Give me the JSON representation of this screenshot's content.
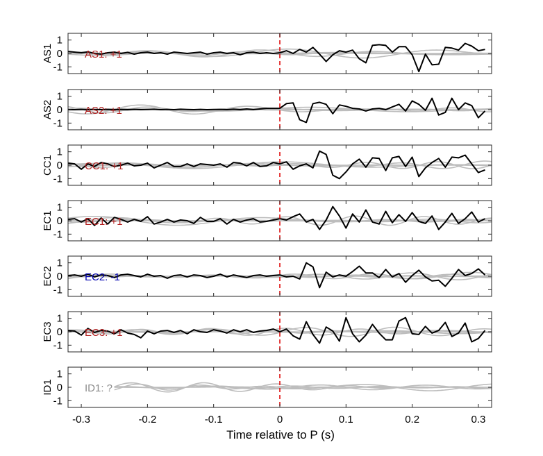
{
  "chart_data": {
    "type": "line",
    "xlabel": "Time relative to P (s)",
    "xlim": [
      -0.32,
      0.32
    ],
    "ylim": [
      -1.5,
      1.5
    ],
    "xticks": [
      "-0.3",
      "-0.2",
      "-0.1",
      "0",
      "0.1",
      "0.2",
      "0.3"
    ],
    "xtick_values": [
      -0.3,
      -0.2,
      -0.1,
      0,
      0.1,
      0.2,
      0.3
    ],
    "yticks": [
      "1",
      "0",
      "-1"
    ],
    "ytick_values": [
      1,
      0,
      -1
    ],
    "marker_x": 0,
    "colors": {
      "trace": "#000000",
      "synthetic": "#bdbdbd",
      "marker": "#e01010",
      "positive": "#b22222",
      "negative": "#0000b0",
      "unknown": "#8c8c8c"
    },
    "panels": [
      {
        "ylabel": "AS1",
        "label": "AS1: +1",
        "label_color": "#b22222",
        "x": [
          -0.32,
          -0.31,
          -0.3,
          -0.29,
          -0.28,
          -0.27,
          -0.26,
          -0.25,
          -0.24,
          -0.23,
          -0.22,
          -0.21,
          -0.2,
          -0.19,
          -0.18,
          -0.17,
          -0.16,
          -0.15,
          -0.14,
          -0.13,
          -0.12,
          -0.11,
          -0.1,
          -0.09,
          -0.08,
          -0.07,
          -0.06,
          -0.05,
          -0.04,
          -0.03,
          -0.02,
          -0.01,
          0.0,
          0.01,
          0.02,
          0.03,
          0.04,
          0.05,
          0.06,
          0.07,
          0.08,
          0.09,
          0.1,
          0.11,
          0.12,
          0.13,
          0.14,
          0.15,
          0.16,
          0.17,
          0.18,
          0.19,
          0.2,
          0.21,
          0.22,
          0.23,
          0.24,
          0.25,
          0.26,
          0.27,
          0.28,
          0.29,
          0.3,
          0.31
        ],
        "y": [
          0.15,
          0.1,
          0.05,
          0.12,
          0.0,
          -0.05,
          0.05,
          0.1,
          0.0,
          0.08,
          -0.05,
          0.05,
          0.1,
          0.0,
          0.05,
          -0.05,
          0.1,
          0.05,
          0.0,
          0.05,
          0.1,
          -0.05,
          0.05,
          0.1,
          0.0,
          0.05,
          -0.1,
          0.05,
          0.1,
          0.0,
          0.05,
          0.0,
          0.05,
          0.2,
          0.0,
          0.3,
          0.1,
          0.45,
          -0.05,
          -0.6,
          -0.1,
          0.2,
          0.1,
          0.25,
          -0.4,
          -0.7,
          0.6,
          0.65,
          0.6,
          0.1,
          0.5,
          0.5,
          -0.1,
          -1.35,
          -0.05,
          -0.85,
          -0.8,
          0.45,
          0.4,
          0.25,
          0.75,
          0.55,
          0.2,
          0.3
        ]
      },
      {
        "ylabel": "AS2",
        "label": "AS2: +1",
        "label_color": "#b22222",
        "x": [
          -0.32,
          -0.31,
          -0.3,
          -0.29,
          -0.28,
          -0.27,
          -0.26,
          -0.25,
          -0.24,
          -0.23,
          -0.22,
          -0.21,
          -0.2,
          -0.19,
          -0.18,
          -0.17,
          -0.16,
          -0.15,
          -0.14,
          -0.13,
          -0.12,
          -0.11,
          -0.1,
          -0.09,
          -0.08,
          -0.07,
          -0.06,
          -0.05,
          -0.04,
          -0.03,
          -0.02,
          -0.01,
          0.0,
          0.01,
          0.02,
          0.03,
          0.04,
          0.05,
          0.06,
          0.07,
          0.08,
          0.09,
          0.1,
          0.11,
          0.12,
          0.13,
          0.14,
          0.15,
          0.16,
          0.17,
          0.18,
          0.19,
          0.2,
          0.21,
          0.22,
          0.23,
          0.24,
          0.25,
          0.26,
          0.27,
          0.28,
          0.29,
          0.3,
          0.31
        ],
        "y": [
          0.0,
          0.0,
          0.02,
          0.0,
          0.01,
          0.0,
          0.02,
          0.0,
          0.01,
          0.0,
          0.02,
          0.0,
          0.01,
          0.03,
          0.0,
          0.02,
          0.0,
          0.03,
          0.01,
          0.0,
          0.02,
          0.0,
          0.01,
          0.02,
          0.0,
          0.03,
          0.0,
          0.05,
          0.0,
          0.05,
          0.1,
          0.1,
          0.1,
          0.45,
          0.5,
          -0.75,
          -0.95,
          0.45,
          0.55,
          0.4,
          -0.3,
          0.35,
          0.25,
          0.1,
          0.05,
          -0.1,
          0.05,
          0.1,
          0.0,
          0.2,
          0.4,
          -0.1,
          0.65,
          0.4,
          -0.05,
          0.85,
          -0.4,
          -0.2,
          0.85,
          0.0,
          0.5,
          0.3,
          -0.6,
          -0.1
        ]
      },
      {
        "ylabel": "CC1",
        "label": "CC1: +1",
        "label_color": "#b22222",
        "x": [
          -0.32,
          -0.31,
          -0.3,
          -0.29,
          -0.28,
          -0.27,
          -0.26,
          -0.25,
          -0.24,
          -0.23,
          -0.22,
          -0.21,
          -0.2,
          -0.19,
          -0.18,
          -0.17,
          -0.16,
          -0.15,
          -0.14,
          -0.13,
          -0.12,
          -0.11,
          -0.1,
          -0.09,
          -0.08,
          -0.07,
          -0.06,
          -0.05,
          -0.04,
          -0.03,
          -0.02,
          -0.01,
          0.0,
          0.01,
          0.02,
          0.03,
          0.04,
          0.05,
          0.06,
          0.07,
          0.08,
          0.09,
          0.1,
          0.11,
          0.12,
          0.13,
          0.14,
          0.15,
          0.16,
          0.17,
          0.18,
          0.19,
          0.2,
          0.21,
          0.22,
          0.23,
          0.24,
          0.25,
          0.26,
          0.27,
          0.28,
          0.29,
          0.3,
          0.31
        ],
        "y": [
          0.15,
          0.1,
          -0.3,
          0.1,
          -0.1,
          0.2,
          0.1,
          -0.1,
          0.0,
          0.15,
          -0.05,
          0.0,
          0.15,
          -0.2,
          0.0,
          0.2,
          -0.1,
          -0.1,
          0.1,
          -0.1,
          0.1,
          0.05,
          0.0,
          0.1,
          -0.15,
          0.2,
          0.15,
          -0.05,
          0.2,
          -0.1,
          -0.05,
          0.2,
          0.1,
          0.25,
          -0.3,
          -0.05,
          0.1,
          -0.2,
          1.05,
          0.8,
          -0.75,
          -1.0,
          -0.5,
          0.1,
          0.45,
          -0.15,
          0.55,
          0.5,
          -0.4,
          0.55,
          0.65,
          -0.1,
          0.6,
          -0.85,
          -0.2,
          0.2,
          0.5,
          -0.15,
          0.6,
          0.55,
          0.75,
          0.1,
          -0.55,
          -0.35
        ]
      },
      {
        "ylabel": "EC1",
        "label": "EC1: +1",
        "label_color": "#b22222",
        "x": [
          -0.32,
          -0.31,
          -0.3,
          -0.29,
          -0.28,
          -0.27,
          -0.26,
          -0.25,
          -0.24,
          -0.23,
          -0.22,
          -0.21,
          -0.2,
          -0.19,
          -0.18,
          -0.17,
          -0.16,
          -0.15,
          -0.14,
          -0.13,
          -0.12,
          -0.11,
          -0.1,
          -0.09,
          -0.08,
          -0.07,
          -0.06,
          -0.05,
          -0.04,
          -0.03,
          -0.02,
          -0.01,
          0.0,
          0.01,
          0.02,
          0.03,
          0.04,
          0.05,
          0.06,
          0.07,
          0.08,
          0.09,
          0.1,
          0.11,
          0.12,
          0.13,
          0.14,
          0.15,
          0.16,
          0.17,
          0.18,
          0.19,
          0.2,
          0.21,
          0.22,
          0.23,
          0.24,
          0.25,
          0.26,
          0.27,
          0.28,
          0.29,
          0.3,
          0.31
        ],
        "y": [
          0.1,
          0.15,
          -0.1,
          0.15,
          -0.35,
          0.2,
          -0.25,
          0.25,
          0.1,
          -0.1,
          0.1,
          -0.05,
          0.3,
          -0.25,
          -0.1,
          0.1,
          -0.1,
          0.05,
          0.0,
          -0.2,
          0.25,
          -0.05,
          -0.05,
          0.15,
          -0.25,
          0.1,
          -0.1,
          0.05,
          0.15,
          -0.1,
          -0.05,
          0.05,
          0.15,
          0.05,
          0.3,
          0.5,
          -0.1,
          0.1,
          -0.65,
          0.05,
          1.05,
          0.35,
          -0.55,
          0.5,
          -0.1,
          0.8,
          -0.1,
          -0.25,
          0.7,
          -0.15,
          0.45,
          -0.05,
          0.6,
          -0.05,
          -0.2,
          0.35,
          -0.65,
          -0.1,
          0.55,
          -0.2,
          0.15,
          0.65,
          -0.1,
          0.15
        ]
      },
      {
        "ylabel": "EC2",
        "label": "EC2: -1",
        "label_color": "#0000b0",
        "x": [
          -0.32,
          -0.31,
          -0.3,
          -0.29,
          -0.28,
          -0.27,
          -0.26,
          -0.25,
          -0.24,
          -0.23,
          -0.22,
          -0.21,
          -0.2,
          -0.19,
          -0.18,
          -0.17,
          -0.16,
          -0.15,
          -0.14,
          -0.13,
          -0.12,
          -0.11,
          -0.1,
          -0.09,
          -0.08,
          -0.07,
          -0.06,
          -0.05,
          -0.04,
          -0.03,
          -0.02,
          -0.01,
          0.0,
          0.01,
          0.02,
          0.03,
          0.04,
          0.05,
          0.06,
          0.07,
          0.08,
          0.09,
          0.1,
          0.11,
          0.12,
          0.13,
          0.14,
          0.15,
          0.16,
          0.17,
          0.18,
          0.19,
          0.2,
          0.21,
          0.22,
          0.23,
          0.24,
          0.25,
          0.26,
          0.27,
          0.28,
          0.29,
          0.3,
          0.31
        ],
        "y": [
          0.05,
          0.1,
          0.0,
          0.15,
          -0.05,
          0.1,
          0.05,
          -0.1,
          0.1,
          0.15,
          0.05,
          -0.05,
          0.15,
          0.0,
          0.05,
          -0.15,
          0.05,
          0.1,
          -0.05,
          0.1,
          0.05,
          -0.1,
          0.0,
          0.15,
          -0.05,
          0.1,
          0.0,
          -0.1,
          0.05,
          0.1,
          0.0,
          0.05,
          0.1,
          -0.05,
          0.0,
          -0.2,
          1.0,
          0.7,
          -0.85,
          0.3,
          -0.05,
          0.1,
          0.0,
          0.35,
          0.75,
          0.25,
          0.25,
          -0.1,
          0.5,
          -0.05,
          0.2,
          -0.45,
          0.05,
          0.45,
          -0.05,
          -0.35,
          -0.3,
          -0.75,
          -0.15,
          0.5,
          0.05,
          0.2,
          0.55,
          0.1
        ]
      },
      {
        "ylabel": "EC3",
        "label": "EC3: +1",
        "label_color": "#b22222",
        "x": [
          -0.32,
          -0.31,
          -0.3,
          -0.29,
          -0.28,
          -0.27,
          -0.26,
          -0.25,
          -0.24,
          -0.23,
          -0.22,
          -0.21,
          -0.2,
          -0.19,
          -0.18,
          -0.17,
          -0.16,
          -0.15,
          -0.14,
          -0.13,
          -0.12,
          -0.11,
          -0.1,
          -0.09,
          -0.08,
          -0.07,
          -0.06,
          -0.05,
          -0.04,
          -0.03,
          -0.02,
          -0.01,
          0.0,
          0.01,
          0.02,
          0.03,
          0.04,
          0.05,
          0.06,
          0.07,
          0.08,
          0.09,
          0.1,
          0.11,
          0.12,
          0.13,
          0.14,
          0.15,
          0.16,
          0.17,
          0.18,
          0.19,
          0.2,
          0.21,
          0.22,
          0.23,
          0.24,
          0.25,
          0.26,
          0.27,
          0.28,
          0.29,
          0.3,
          0.31
        ],
        "y": [
          0.1,
          0.05,
          -0.25,
          0.25,
          -0.05,
          0.1,
          0.05,
          -0.15,
          0.15,
          -0.1,
          -0.2,
          -0.45,
          0.05,
          -0.15,
          0.05,
          0.1,
          -0.05,
          0.1,
          -0.15,
          0.15,
          0.0,
          -0.05,
          0.15,
          0.05,
          -0.1,
          0.15,
          0.0,
          0.15,
          -0.05,
          0.05,
          0.1,
          0.2,
          0.0,
          0.2,
          -0.3,
          -0.55,
          0.75,
          -0.2,
          -0.85,
          0.35,
          0.05,
          -0.7,
          1.05,
          -0.15,
          -0.75,
          -0.25,
          0.55,
          -0.1,
          -0.6,
          -0.6,
          0.8,
          1.05,
          -0.15,
          -0.2,
          0.4,
          -0.1,
          0.1,
          0.7,
          -0.35,
          -0.1,
          0.65,
          -0.75,
          -0.5,
          0.1
        ]
      },
      {
        "ylabel": "ID1",
        "label": "ID1: ?",
        "label_color": "#8c8c8c",
        "x": [],
        "y": []
      }
    ]
  }
}
